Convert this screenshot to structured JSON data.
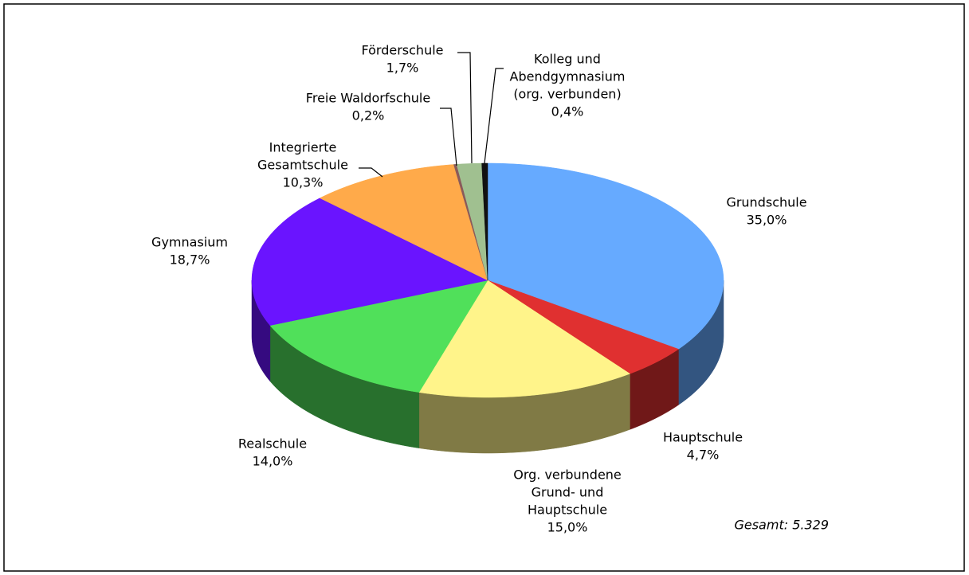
{
  "chart_data": {
    "type": "pie3d",
    "categories": [
      [
        "Grundschule"
      ],
      [
        "Hauptschule"
      ],
      [
        "Org. verbundene",
        "Grund- und",
        "Hauptschule"
      ],
      [
        "Realschule"
      ],
      [
        "Gymnasium"
      ],
      [
        "Integrierte",
        "Gesamtschule"
      ],
      [
        "Freie Waldorfschule"
      ],
      [
        "Förderschule"
      ],
      [
        "Kolleg und",
        "Abendgymnasium",
        "(org. verbunden)"
      ]
    ],
    "values": [
      35.0,
      4.7,
      15.0,
      14.0,
      18.7,
      10.3,
      0.2,
      1.7,
      0.4
    ],
    "value_labels": [
      "35,0%",
      "4,7%",
      "15,0%",
      "14,0%",
      "18,7%",
      "10,3%",
      "0,2%",
      "1,7%",
      "0,4%"
    ],
    "colors": [
      "#66aaff",
      "#e03030",
      "#fff48a",
      "#50e05a",
      "#6a14ff",
      "#ffaa4a",
      "#8a5a5a",
      "#a0c090",
      "#111111"
    ],
    "annotation": "Gesamt: 5.329"
  }
}
